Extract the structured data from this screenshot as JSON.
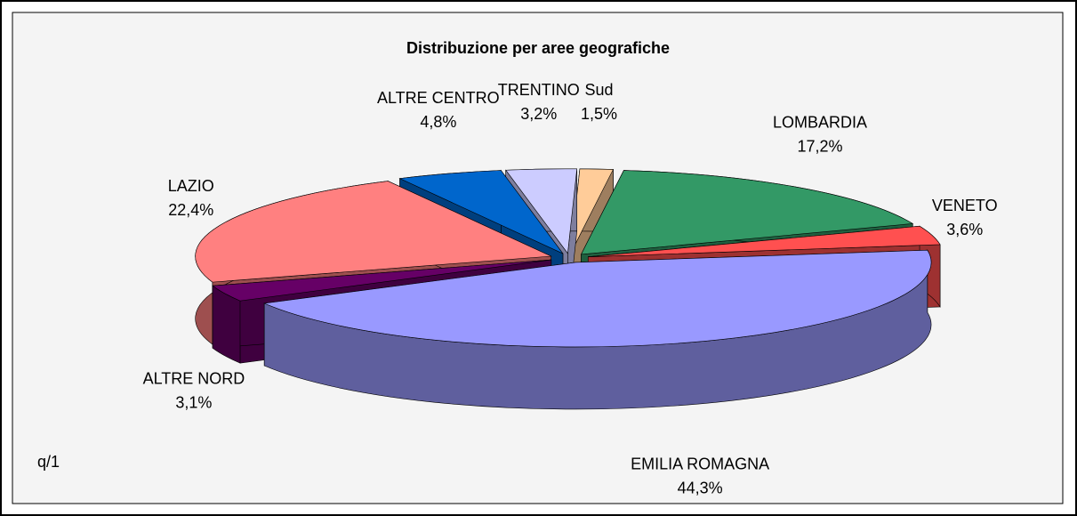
{
  "chart_data": {
    "type": "pie3d",
    "title": "Distribuzione per aree geografiche",
    "categories": [
      "LOMBARDIA",
      "VENETO",
      "EMILIA ROMAGNA",
      "ALTRE NORD",
      "LAZIO",
      "ALTRE CENTRO",
      "TRENTINO",
      "Sud"
    ],
    "values": [
      17.2,
      3.6,
      44.3,
      3.1,
      22.4,
      4.8,
      3.2,
      1.5
    ],
    "value_labels": [
      "17,2%",
      "3,6%",
      "44,3%",
      "3,1%",
      "22,4%",
      "4,8%",
      "3,2%",
      "1,5%"
    ],
    "colors": [
      "#339966",
      "#ff5050",
      "#9999ff",
      "#660066",
      "#ff8080",
      "#0066cc",
      "#ccccff",
      "#ffcc99"
    ],
    "footnote": "q/1"
  }
}
